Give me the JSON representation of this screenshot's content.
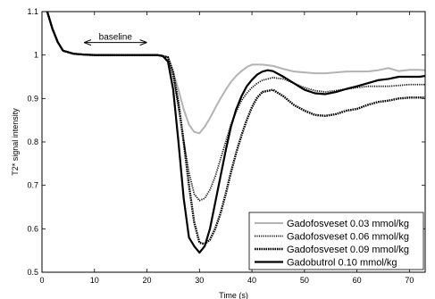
{
  "chart_data": {
    "type": "line",
    "title": "",
    "xlabel": "Time (s)",
    "ylabel": "T2* signal intensity",
    "xlim": [
      0,
      73
    ],
    "ylim": [
      0.5,
      1.1
    ],
    "xticks": [
      "0",
      "10",
      "20",
      "30",
      "40",
      "50",
      "60",
      "70"
    ],
    "yticks": [
      "0.5",
      "0.6",
      "0.7",
      "0.8",
      "0.9",
      "1",
      "1.1"
    ],
    "grid": false,
    "legend_position": "bottom-right",
    "annotation": {
      "text": "baseline",
      "x_start": 8,
      "x_end": 20,
      "y": 1.033
    },
    "series": [
      {
        "name": "Gadofosveset 0.03 mmol/kg",
        "color": "#b3b3b3",
        "style": "solid-gray",
        "x": [
          1,
          2,
          3,
          4,
          6,
          8,
          10,
          12,
          14,
          16,
          18,
          20,
          22,
          24,
          25,
          26,
          27,
          28,
          29,
          30,
          31,
          32,
          33,
          34,
          35,
          36,
          37,
          38,
          39,
          40,
          42,
          44,
          46,
          48,
          50,
          52,
          54,
          56,
          58,
          60,
          62,
          64,
          66,
          68,
          70,
          72,
          73
        ],
        "y": [
          1.1,
          1.06,
          1.03,
          1.01,
          1.003,
          1.001,
          1.0,
          1.0,
          1.0,
          1.0,
          1.0,
          1.0,
          1.0,
          0.995,
          0.96,
          0.92,
          0.875,
          0.84,
          0.823,
          0.82,
          0.835,
          0.855,
          0.878,
          0.9,
          0.92,
          0.938,
          0.952,
          0.963,
          0.972,
          0.978,
          0.978,
          0.975,
          0.968,
          0.962,
          0.96,
          0.958,
          0.958,
          0.96,
          0.962,
          0.962,
          0.962,
          0.965,
          0.97,
          0.963,
          0.966,
          0.966,
          0.965
        ]
      },
      {
        "name": "Gadofosveset 0.06 mmol/kg",
        "color": "#111111",
        "style": "fine-dotted",
        "x": [
          1,
          2,
          3,
          4,
          6,
          8,
          10,
          12,
          14,
          16,
          18,
          20,
          22,
          24,
          25,
          26,
          27,
          28,
          29,
          30,
          31,
          32,
          33,
          34,
          35,
          36,
          37,
          38,
          39,
          40,
          41,
          42,
          44,
          46,
          48,
          50,
          52,
          54,
          56,
          58,
          60,
          62,
          64,
          66,
          68,
          70,
          72,
          73
        ],
        "y": [
          1.1,
          1.06,
          1.03,
          1.01,
          1.003,
          1.001,
          1.0,
          1.0,
          1.0,
          1.0,
          1.0,
          1.0,
          1.0,
          0.995,
          0.95,
          0.88,
          0.8,
          0.73,
          0.68,
          0.665,
          0.67,
          0.69,
          0.72,
          0.76,
          0.8,
          0.84,
          0.87,
          0.895,
          0.912,
          0.925,
          0.935,
          0.942,
          0.948,
          0.945,
          0.935,
          0.925,
          0.918,
          0.915,
          0.918,
          0.922,
          0.925,
          0.928,
          0.928,
          0.928,
          0.93,
          0.932,
          0.932,
          0.932
        ]
      },
      {
        "name": "Gadofosveset 0.09 mmol/kg",
        "color": "#000000",
        "style": "dense-dotted",
        "x": [
          1,
          2,
          3,
          4,
          6,
          8,
          10,
          12,
          14,
          16,
          18,
          20,
          22,
          24,
          25,
          26,
          27,
          28,
          29,
          30,
          31,
          32,
          33,
          34,
          35,
          36,
          37,
          38,
          39,
          40,
          41,
          42,
          44,
          46,
          48,
          50,
          52,
          54,
          56,
          58,
          60,
          62,
          64,
          66,
          68,
          70,
          72,
          73
        ],
        "y": [
          1.1,
          1.06,
          1.03,
          1.01,
          1.003,
          1.001,
          1.0,
          1.0,
          1.0,
          1.0,
          1.0,
          1.0,
          1.0,
          0.995,
          0.96,
          0.89,
          0.8,
          0.7,
          0.615,
          0.568,
          0.565,
          0.575,
          0.6,
          0.635,
          0.68,
          0.73,
          0.775,
          0.815,
          0.85,
          0.88,
          0.902,
          0.915,
          0.92,
          0.905,
          0.885,
          0.872,
          0.862,
          0.86,
          0.864,
          0.872,
          0.876,
          0.885,
          0.892,
          0.895,
          0.9,
          0.902,
          0.902,
          0.902
        ]
      },
      {
        "name": "Gadobutrol 0.10 mmol/kg",
        "color": "#000000",
        "style": "solid-black",
        "x": [
          1,
          2,
          3,
          4,
          6,
          8,
          10,
          12,
          14,
          16,
          18,
          20,
          22,
          23,
          24,
          25,
          26,
          27,
          28,
          29,
          30,
          31,
          32,
          33,
          34,
          35,
          36,
          37,
          38,
          39,
          40,
          41,
          42,
          43,
          44,
          46,
          48,
          50,
          52,
          54,
          56,
          58,
          60,
          62,
          64,
          66,
          68,
          70,
          72,
          73
        ],
        "y": [
          1.1,
          1.06,
          1.03,
          1.01,
          1.003,
          1.001,
          1.0,
          1.0,
          1.0,
          1.0,
          1.0,
          1.0,
          1.0,
          0.998,
          0.985,
          0.92,
          0.8,
          0.67,
          0.58,
          0.56,
          0.545,
          0.56,
          0.6,
          0.66,
          0.72,
          0.78,
          0.835,
          0.875,
          0.905,
          0.928,
          0.943,
          0.955,
          0.962,
          0.965,
          0.963,
          0.95,
          0.935,
          0.92,
          0.912,
          0.91,
          0.915,
          0.922,
          0.928,
          0.935,
          0.942,
          0.945,
          0.95,
          0.95,
          0.95,
          0.952
        ]
      }
    ]
  }
}
